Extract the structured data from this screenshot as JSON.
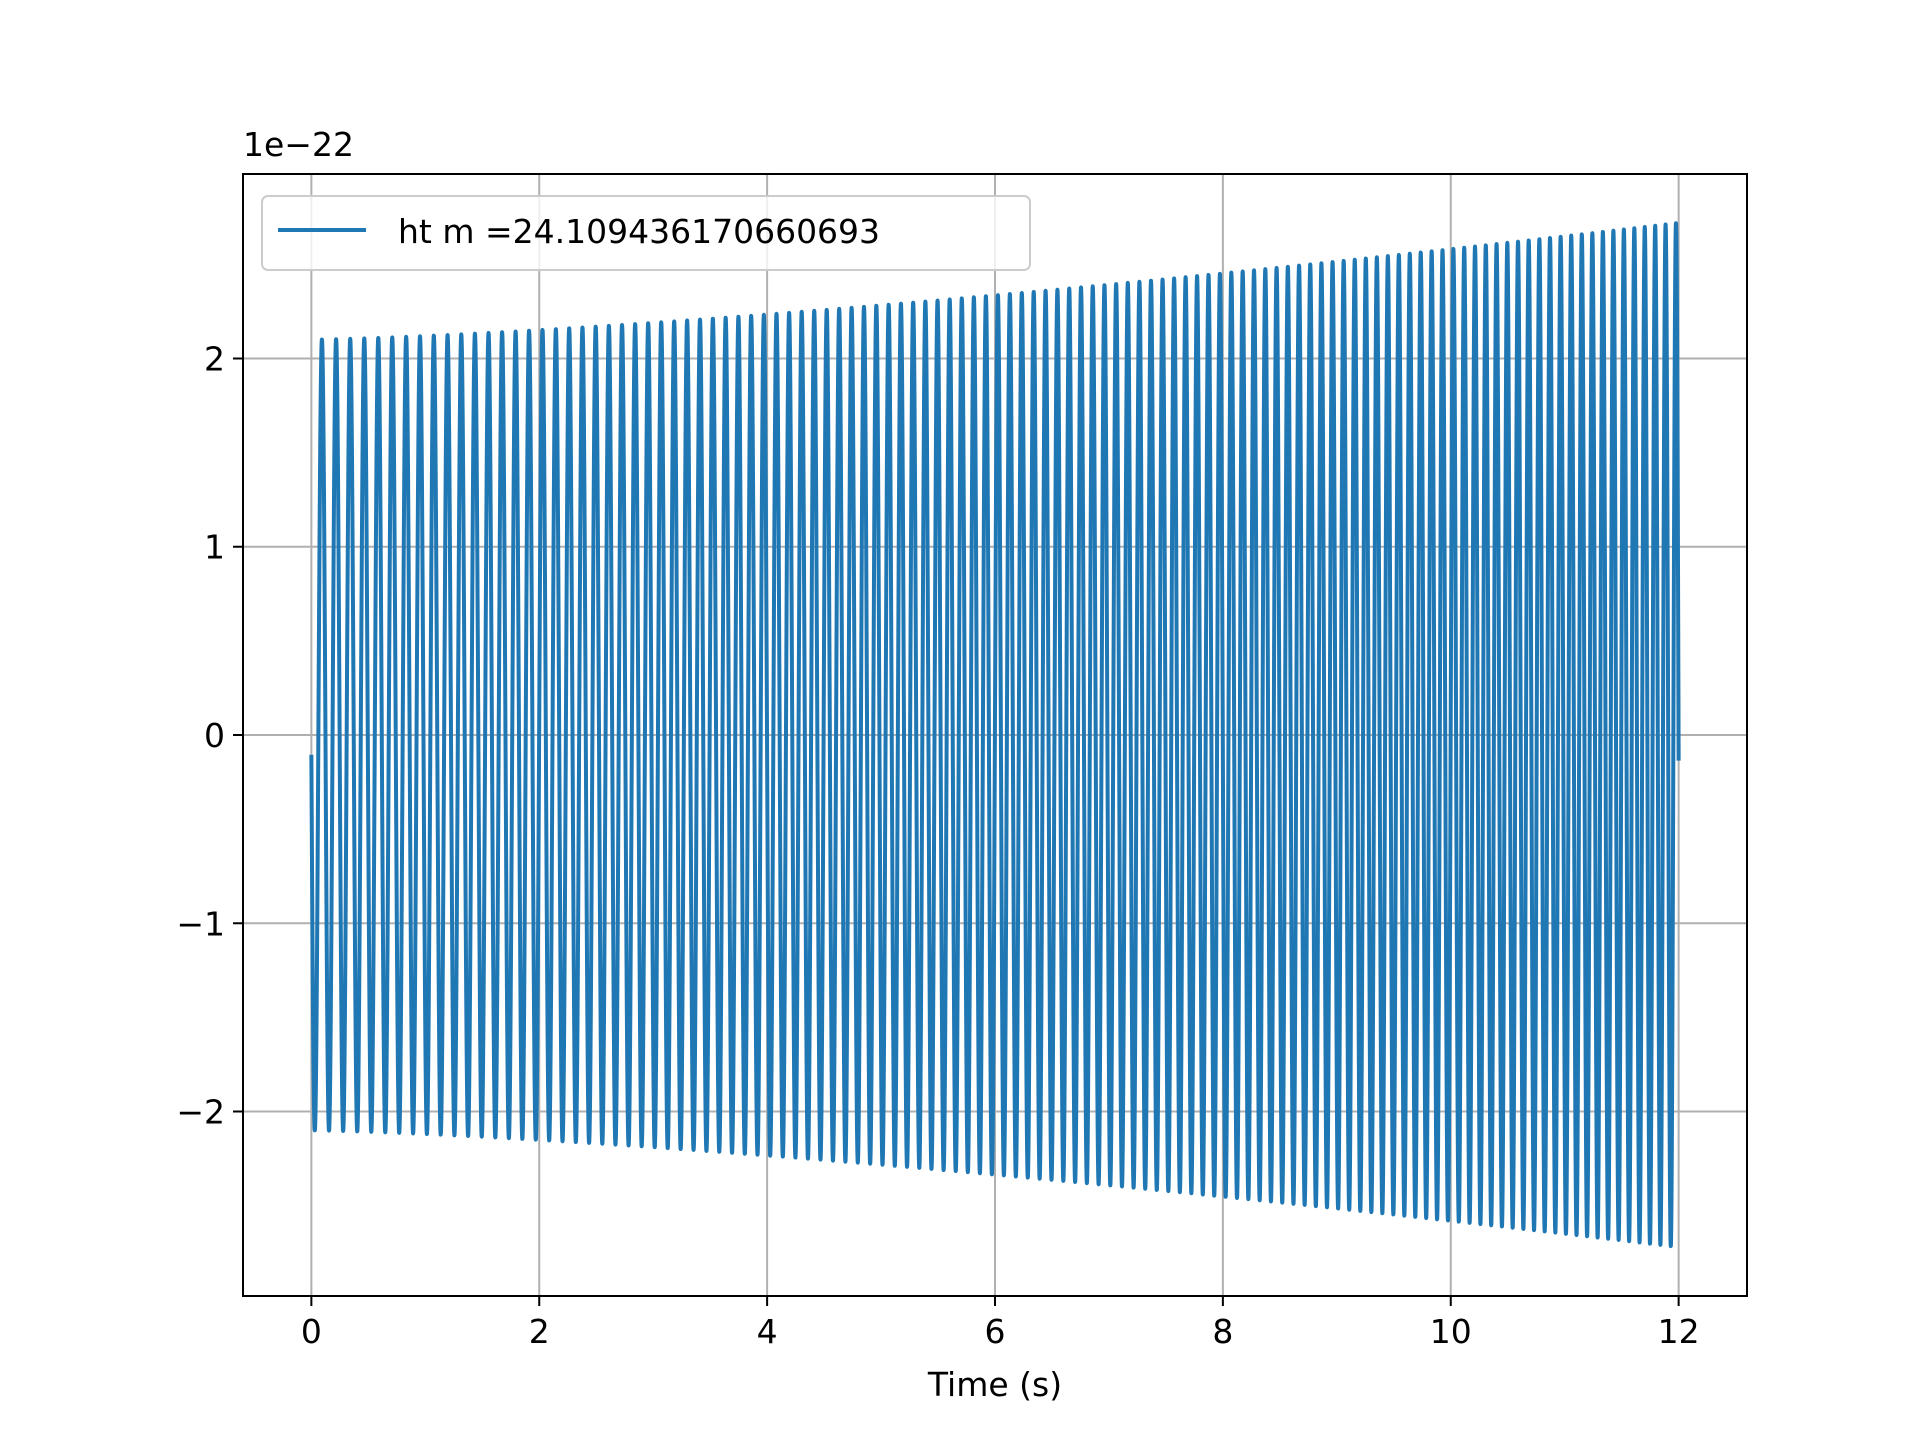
{
  "chart_data": {
    "type": "line",
    "title": "",
    "xlabel": "Time (s)",
    "ylabel": "",
    "offset_label": "1e−22",
    "xlim": [
      -0.6,
      12.6
    ],
    "ylim": [
      -2.98,
      2.98
    ],
    "xticks": [
      0,
      2,
      4,
      6,
      8,
      10,
      12
    ],
    "xtick_labels": [
      "0",
      "2",
      "4",
      "6",
      "8",
      "10",
      "12"
    ],
    "yticks": [
      -2,
      -1,
      0,
      1,
      2
    ],
    "ytick_labels": [
      "−2",
      "−1",
      "0",
      "1",
      "2"
    ],
    "grid": true,
    "legend_position": "top-left",
    "series": [
      {
        "name": "ht m =24.109436170660693",
        "color": "#1f77b4",
        "x_start": 0,
        "x_end": 12,
        "start_frequency_hz": 8.0,
        "end_frequency_hz": 11.0,
        "start_amplitude": 2.1,
        "end_amplitude": 2.72,
        "amplitude_scale": "1e-22"
      }
    ]
  }
}
